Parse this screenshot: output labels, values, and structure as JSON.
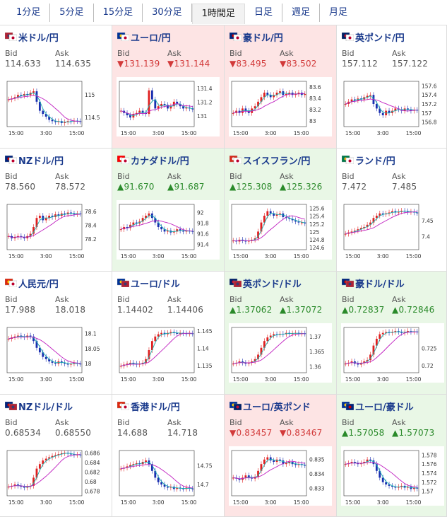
{
  "tabs": [
    {
      "label": "1分足",
      "active": false
    },
    {
      "label": "5分足",
      "active": false
    },
    {
      "label": "15分足",
      "active": false
    },
    {
      "label": "30分足",
      "active": false
    },
    {
      "label": "1時間足",
      "active": true
    },
    {
      "label": "日足",
      "active": false
    },
    {
      "label": "週足",
      "active": false
    },
    {
      "label": "月足",
      "active": false
    }
  ],
  "labels": {
    "bid": "Bid",
    "ask": "Ask"
  },
  "colors": {
    "up_bg": "#e9f7e6",
    "down_bg": "#fde4e4",
    "up_text": "#2a8a2a",
    "down_text": "#d23a3a",
    "link": "#1a3a8c",
    "candle_up": "#e02020",
    "candle_down": "#1a2fb0",
    "ma_short": "#18b0b0",
    "ma_long": "#c020c0"
  },
  "pairs": [
    {
      "name": "米ドル/円",
      "flag": "us-jp-flag-icon",
      "dir": "flat",
      "bid": "114.633",
      "ask": "114.635",
      "chart_data": {
        "type": "candlestick",
        "x_ticks": [
          "15:00",
          "3:00",
          "15:00"
        ],
        "y_ticks": [
          "115",
          "114.5"
        ],
        "ylim": [
          114.3,
          115.3
        ],
        "shape": [
          0.6,
          0.62,
          0.65,
          0.7,
          0.68,
          0.72,
          0.7,
          0.75,
          0.78,
          0.55,
          0.35,
          0.28,
          0.22,
          0.15,
          0.12,
          0.1,
          0.12,
          0.08,
          0.1,
          0.12,
          0.11,
          0.13,
          0.12,
          0.11
        ]
      }
    },
    {
      "name": "ユーロ/円",
      "flag": "eu-jp-flag-icon",
      "dir": "down",
      "bid": "131.139",
      "ask": "131.144",
      "chart_data": {
        "type": "candlestick",
        "x_ticks": [
          "15:00",
          "3:00",
          "15:00"
        ],
        "y_ticks": [
          "131.4",
          "131.2",
          "131"
        ],
        "ylim": [
          130.85,
          131.5
        ],
        "shape": [
          0.35,
          0.3,
          0.25,
          0.2,
          0.28,
          0.3,
          0.35,
          0.3,
          0.28,
          0.8,
          0.6,
          0.4,
          0.45,
          0.5,
          0.48,
          0.4,
          0.45,
          0.55,
          0.5,
          0.45,
          0.4,
          0.42,
          0.4,
          0.38
        ]
      }
    },
    {
      "name": "豪ドル/円",
      "flag": "au-jp-flag-icon",
      "dir": "down",
      "bid": "83.495",
      "ask": "83.502",
      "chart_data": {
        "type": "candlestick",
        "x_ticks": [
          "15:00",
          "3:00",
          "15:00"
        ],
        "y_ticks": [
          "83.6",
          "83.4",
          "83.2",
          "83"
        ],
        "ylim": [
          82.9,
          83.7
        ],
        "shape": [
          0.3,
          0.35,
          0.3,
          0.4,
          0.35,
          0.3,
          0.4,
          0.45,
          0.55,
          0.65,
          0.75,
          0.7,
          0.65,
          0.7,
          0.75,
          0.78,
          0.7,
          0.72,
          0.75,
          0.7,
          0.72,
          0.75,
          0.7,
          0.72
        ]
      }
    },
    {
      "name": "英ポンド/円",
      "flag": "gb-jp-flag-icon",
      "dir": "flat",
      "bid": "157.112",
      "ask": "157.122",
      "chart_data": {
        "type": "candlestick",
        "x_ticks": [
          "15:00",
          "3:00",
          "15:00"
        ],
        "y_ticks": [
          "157.6",
          "157.4",
          "157.2",
          "157",
          "156.8"
        ],
        "ylim": [
          156.7,
          157.7
        ],
        "shape": [
          0.5,
          0.55,
          0.6,
          0.58,
          0.62,
          0.6,
          0.65,
          0.68,
          0.7,
          0.5,
          0.4,
          0.3,
          0.25,
          0.35,
          0.3,
          0.35,
          0.4,
          0.38,
          0.35,
          0.4,
          0.38,
          0.35,
          0.37,
          0.36
        ]
      }
    },
    {
      "name": "NZドル/円",
      "flag": "nz-jp-flag-icon",
      "dir": "flat",
      "bid": "78.560",
      "ask": "78.572",
      "chart_data": {
        "type": "candlestick",
        "x_ticks": [
          "15:00",
          "3:00",
          "15:00"
        ],
        "y_ticks": [
          "78.6",
          "78.4",
          "78.2"
        ],
        "ylim": [
          78.05,
          78.7
        ],
        "shape": [
          0.3,
          0.25,
          0.28,
          0.3,
          0.28,
          0.25,
          0.3,
          0.35,
          0.5,
          0.7,
          0.75,
          0.65,
          0.7,
          0.75,
          0.72,
          0.78,
          0.75,
          0.8,
          0.78,
          0.82,
          0.8,
          0.78,
          0.8,
          0.79
        ]
      }
    },
    {
      "name": "カナダドル/円",
      "flag": "ca-jp-flag-icon",
      "dir": "up",
      "bid": "91.670",
      "ask": "91.687",
      "chart_data": {
        "type": "candlestick",
        "x_ticks": [
          "15:00",
          "3:00",
          "15:00"
        ],
        "y_ticks": [
          "92",
          "91.8",
          "91.6",
          "91.4"
        ],
        "ylim": [
          91.3,
          92.15
        ],
        "shape": [
          0.45,
          0.5,
          0.48,
          0.55,
          0.6,
          0.58,
          0.62,
          0.7,
          0.75,
          0.8,
          0.7,
          0.6,
          0.5,
          0.45,
          0.4,
          0.42,
          0.38,
          0.4,
          0.45,
          0.42,
          0.4,
          0.42,
          0.41,
          0.4
        ]
      }
    },
    {
      "name": "スイスフラン/円",
      "flag": "ch-jp-flag-icon",
      "dir": "up",
      "bid": "125.308",
      "ask": "125.326",
      "chart_data": {
        "type": "candlestick",
        "x_ticks": [
          "15:00",
          "3:00",
          "15:00"
        ],
        "y_ticks": [
          "125.6",
          "125.4",
          "125.2",
          "125",
          "124.8",
          "124.6"
        ],
        "ylim": [
          124.55,
          125.7
        ],
        "shape": [
          0.2,
          0.18,
          0.22,
          0.2,
          0.18,
          0.2,
          0.22,
          0.25,
          0.4,
          0.6,
          0.75,
          0.85,
          0.8,
          0.75,
          0.78,
          0.8,
          0.72,
          0.7,
          0.68,
          0.65,
          0.62,
          0.6,
          0.6,
          0.58
        ]
      }
    },
    {
      "name": "ランド/円",
      "flag": "za-jp-flag-icon",
      "dir": "flat",
      "bid": "7.472",
      "ask": "7.485",
      "chart_data": {
        "type": "candlestick",
        "x_ticks": [
          "15:00",
          "3:00",
          "15:00"
        ],
        "y_ticks": [
          "7.45",
          "7.4"
        ],
        "ylim": [
          7.36,
          7.5
        ],
        "shape": [
          0.35,
          0.38,
          0.4,
          0.42,
          0.45,
          0.48,
          0.5,
          0.55,
          0.6,
          0.7,
          0.75,
          0.8,
          0.78,
          0.8,
          0.82,
          0.85,
          0.82,
          0.84,
          0.86,
          0.85,
          0.83,
          0.84,
          0.82,
          0.81
        ]
      }
    },
    {
      "name": "人民元/円",
      "flag": "cn-jp-flag-icon",
      "dir": "flat",
      "bid": "17.988",
      "ask": "18.018",
      "chart_data": {
        "type": "candlestick",
        "x_ticks": [
          "15:00",
          "3:00",
          "15:00"
        ],
        "y_ticks": [
          "18.1",
          "18.05",
          "18"
        ],
        "ylim": [
          17.97,
          18.12
        ],
        "shape": [
          0.75,
          0.78,
          0.8,
          0.82,
          0.8,
          0.78,
          0.82,
          0.8,
          0.7,
          0.55,
          0.45,
          0.35,
          0.3,
          0.25,
          0.22,
          0.2,
          0.25,
          0.22,
          0.2,
          0.18,
          0.2,
          0.22,
          0.2,
          0.19
        ]
      }
    },
    {
      "name": "ユーロ/ドル",
      "flag": "eu-us-flag-icon",
      "dir": "flat",
      "bid": "1.14402",
      "ask": "1.14406",
      "chart_data": {
        "type": "candlestick",
        "x_ticks": [
          "15:00",
          "3:00",
          "15:00"
        ],
        "y_ticks": [
          "1.145",
          "1.14",
          "1.135"
        ],
        "ylim": [
          1.133,
          1.146
        ],
        "shape": [
          0.15,
          0.18,
          0.2,
          0.22,
          0.2,
          0.18,
          0.2,
          0.22,
          0.3,
          0.5,
          0.7,
          0.8,
          0.85,
          0.88,
          0.85,
          0.88,
          0.9,
          0.88,
          0.86,
          0.88,
          0.87,
          0.86,
          0.87,
          0.86
        ]
      }
    },
    {
      "name": "英ポンド/ドル",
      "flag": "gb-us-flag-icon",
      "dir": "up",
      "bid": "1.37062",
      "ask": "1.37072",
      "chart_data": {
        "type": "candlestick",
        "x_ticks": [
          "15:00",
          "3:00",
          "15:00"
        ],
        "y_ticks": [
          "1.37",
          "1.365",
          "1.36"
        ],
        "ylim": [
          1.358,
          1.373
        ],
        "shape": [
          0.2,
          0.22,
          0.25,
          0.22,
          0.2,
          0.22,
          0.25,
          0.3,
          0.4,
          0.55,
          0.7,
          0.78,
          0.82,
          0.85,
          0.84,
          0.86,
          0.85,
          0.88,
          0.86,
          0.87,
          0.88,
          0.86,
          0.87,
          0.86
        ]
      }
    },
    {
      "name": "豪ドル/ドル",
      "flag": "au-us-flag-icon",
      "dir": "up",
      "bid": "0.72837",
      "ask": "0.72846",
      "chart_data": {
        "type": "candlestick",
        "x_ticks": [
          "15:00",
          "3:00",
          "15:00"
        ],
        "y_ticks": [
          "0.725",
          "0.72"
        ],
        "ylim": [
          0.718,
          0.731
        ],
        "shape": [
          0.2,
          0.22,
          0.25,
          0.2,
          0.18,
          0.22,
          0.25,
          0.28,
          0.4,
          0.6,
          0.75,
          0.85,
          0.88,
          0.9,
          0.88,
          0.9,
          0.92,
          0.9,
          0.88,
          0.9,
          0.92,
          0.9,
          0.91,
          0.9
        ]
      }
    },
    {
      "name": "NZドル/ドル",
      "flag": "nz-us-flag-icon",
      "dir": "flat",
      "bid": "0.68534",
      "ask": "0.68550",
      "chart_data": {
        "type": "candlestick",
        "x_ticks": [
          "15:00",
          "3:00",
          "15:00"
        ],
        "y_ticks": [
          "0.686",
          "0.684",
          "0.682",
          "0.68",
          "0.678"
        ],
        "ylim": [
          0.677,
          0.6865
        ],
        "shape": [
          0.2,
          0.22,
          0.25,
          0.22,
          0.2,
          0.18,
          0.2,
          0.22,
          0.4,
          0.6,
          0.7,
          0.78,
          0.82,
          0.85,
          0.88,
          0.9,
          0.92,
          0.94,
          0.95,
          0.93,
          0.92,
          0.9,
          0.91,
          0.9
        ]
      }
    },
    {
      "name": "香港ドル/円",
      "flag": "hk-jp-flag-icon",
      "dir": "flat",
      "bid": "14.688",
      "ask": "14.718",
      "chart_data": {
        "type": "candlestick",
        "x_ticks": [
          "15:00",
          "3:00",
          "15:00"
        ],
        "y_ticks": [
          "14.75",
          "14.7"
        ],
        "ylim": [
          14.67,
          14.79
        ],
        "shape": [
          0.6,
          0.62,
          0.65,
          0.68,
          0.7,
          0.72,
          0.7,
          0.75,
          0.78,
          0.7,
          0.55,
          0.4,
          0.3,
          0.25,
          0.2,
          0.18,
          0.2,
          0.15,
          0.18,
          0.16,
          0.15,
          0.18,
          0.16,
          0.15
        ]
      }
    },
    {
      "name": "ユーロ/英ポンド",
      "flag": "eu-gb-flag-icon",
      "dir": "down",
      "bid": "0.83457",
      "ask": "0.83467",
      "chart_data": {
        "type": "candlestick",
        "x_ticks": [
          "15:00",
          "3:00",
          "15:00"
        ],
        "y_ticks": [
          "0.835",
          "0.834",
          "0.833"
        ],
        "ylim": [
          0.8325,
          0.8356
        ],
        "shape": [
          0.4,
          0.38,
          0.35,
          0.4,
          0.45,
          0.4,
          0.38,
          0.42,
          0.55,
          0.7,
          0.8,
          0.85,
          0.78,
          0.75,
          0.8,
          0.78,
          0.7,
          0.72,
          0.75,
          0.7,
          0.68,
          0.7,
          0.68,
          0.67
        ]
      }
    },
    {
      "name": "ユーロ/豪ドル",
      "flag": "eu-au-flag-icon",
      "dir": "up",
      "bid": "1.57058",
      "ask": "1.57073",
      "chart_data": {
        "type": "candlestick",
        "x_ticks": [
          "15:00",
          "3:00",
          "15:00"
        ],
        "y_ticks": [
          "1.578",
          "1.576",
          "1.574",
          "1.572",
          "1.57"
        ],
        "ylim": [
          1.569,
          1.579
        ],
        "shape": [
          0.7,
          0.72,
          0.75,
          0.72,
          0.7,
          0.72,
          0.75,
          0.8,
          0.78,
          0.7,
          0.55,
          0.4,
          0.3,
          0.25,
          0.22,
          0.2,
          0.18,
          0.2,
          0.22,
          0.18,
          0.2,
          0.15,
          0.18,
          0.16
        ]
      }
    }
  ]
}
